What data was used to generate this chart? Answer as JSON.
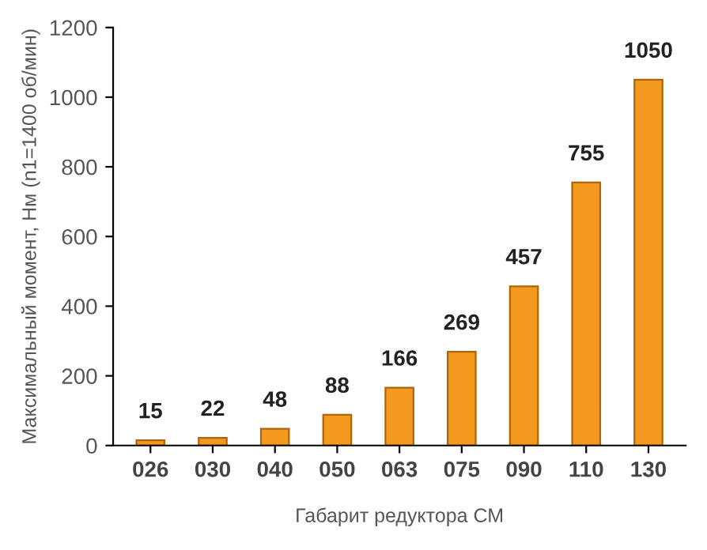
{
  "chart_data": {
    "type": "bar",
    "xlabel": "Габарит редуктора СМ",
    "ylabel": "Максимальный момент, Нм (n1=1400 об/мин)",
    "categories": [
      "026",
      "030",
      "040",
      "050",
      "063",
      "075",
      "090",
      "110",
      "130"
    ],
    "values": [
      15,
      22,
      48,
      88,
      166,
      269,
      457,
      755,
      1050
    ],
    "color": "#f39a1e",
    "ylim": [
      0,
      1200
    ],
    "yticks": [
      0,
      200,
      400,
      600,
      800,
      1000,
      1200
    ],
    "data_labels": true,
    "grid": false
  }
}
